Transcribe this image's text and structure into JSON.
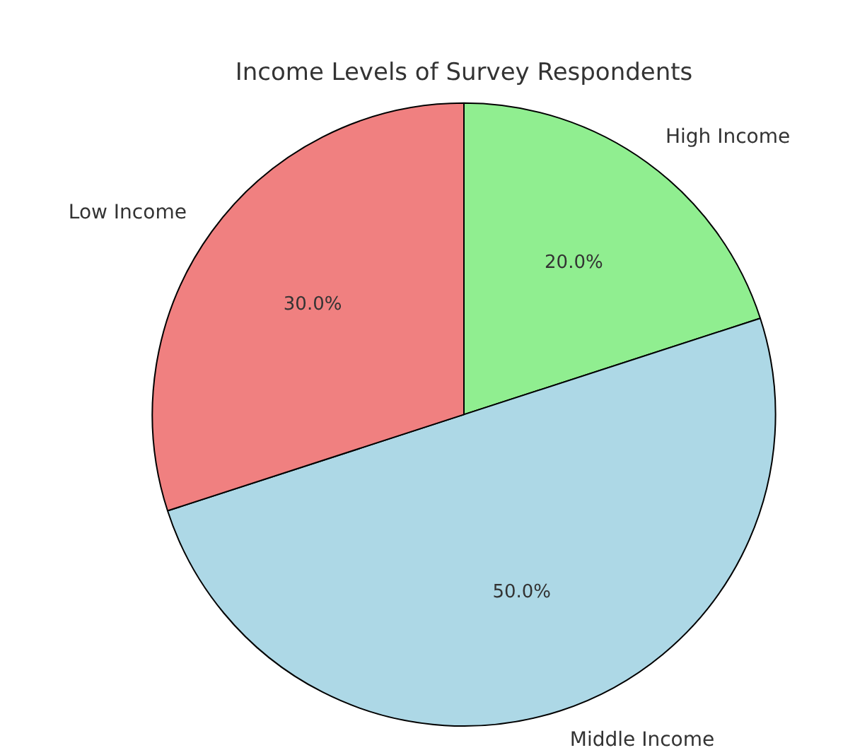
{
  "chart_data": {
    "type": "pie",
    "title": "Income Levels of Survey Respondents",
    "categories": [
      "High Income",
      "Middle Income",
      "Low Income"
    ],
    "values": [
      20,
      50,
      30
    ],
    "colors": [
      "#90ee90",
      "#add8e6",
      "#f08080"
    ],
    "value_labels": [
      "20.0%",
      "50.0%",
      "30.0%"
    ],
    "legend": false
  }
}
